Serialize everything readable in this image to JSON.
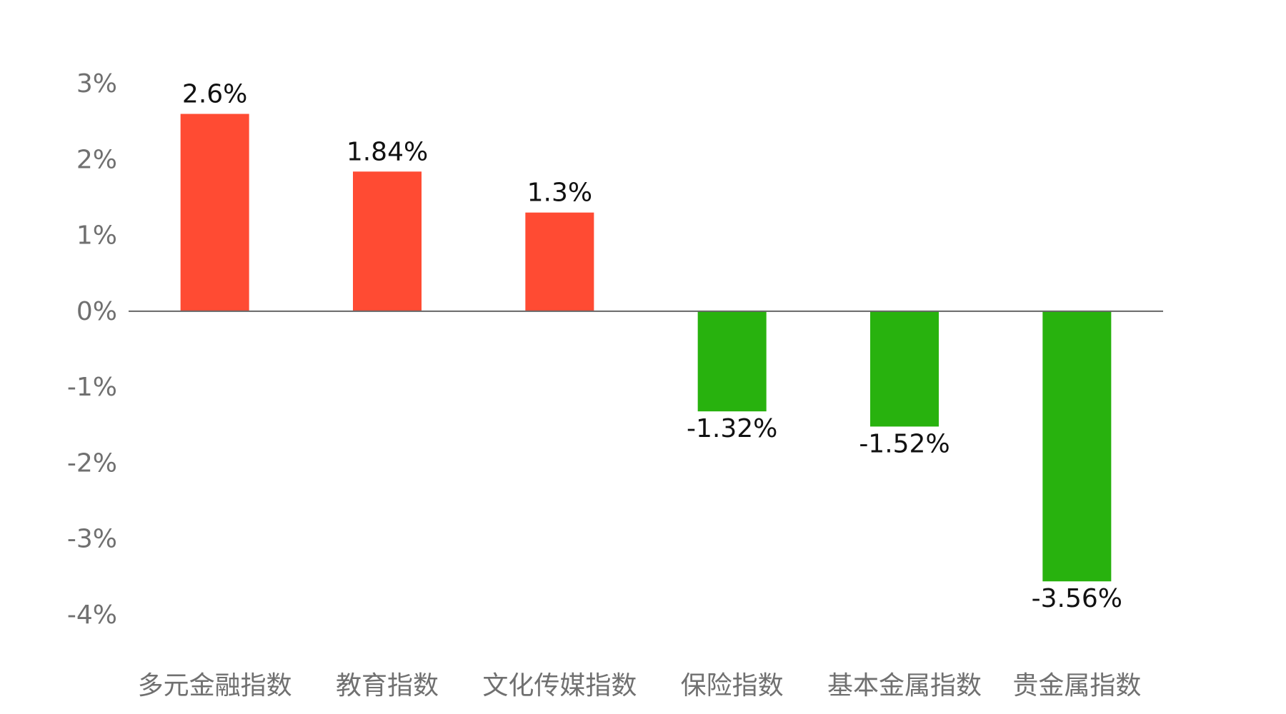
{
  "chart_data": {
    "type": "bar",
    "categories": [
      "多元金融指数",
      "教育指数",
      "文化传媒指数",
      "保险指数",
      "基本金属指数",
      "贵金属指数"
    ],
    "values": [
      2.6,
      1.84,
      1.3,
      -1.32,
      -1.52,
      -3.56
    ],
    "data_labels": [
      "2.6%",
      "1.84%",
      "1.3%",
      "-1.32%",
      "-1.52%",
      "-3.56%"
    ],
    "title": "",
    "xlabel": "",
    "ylabel": "",
    "ylim": [
      -4,
      3
    ],
    "yticks": [
      3,
      2,
      1,
      0,
      -1,
      -2,
      -3,
      -4
    ],
    "ytick_labels": [
      "3%",
      "2%",
      "1%",
      "0%",
      "-1%",
      "-2%",
      "-3%",
      "-4%"
    ],
    "grid": false,
    "legend": "none",
    "colors": {
      "positive": "#FF4B33",
      "negative": "#28B20E",
      "zero_line": "#666666"
    }
  }
}
